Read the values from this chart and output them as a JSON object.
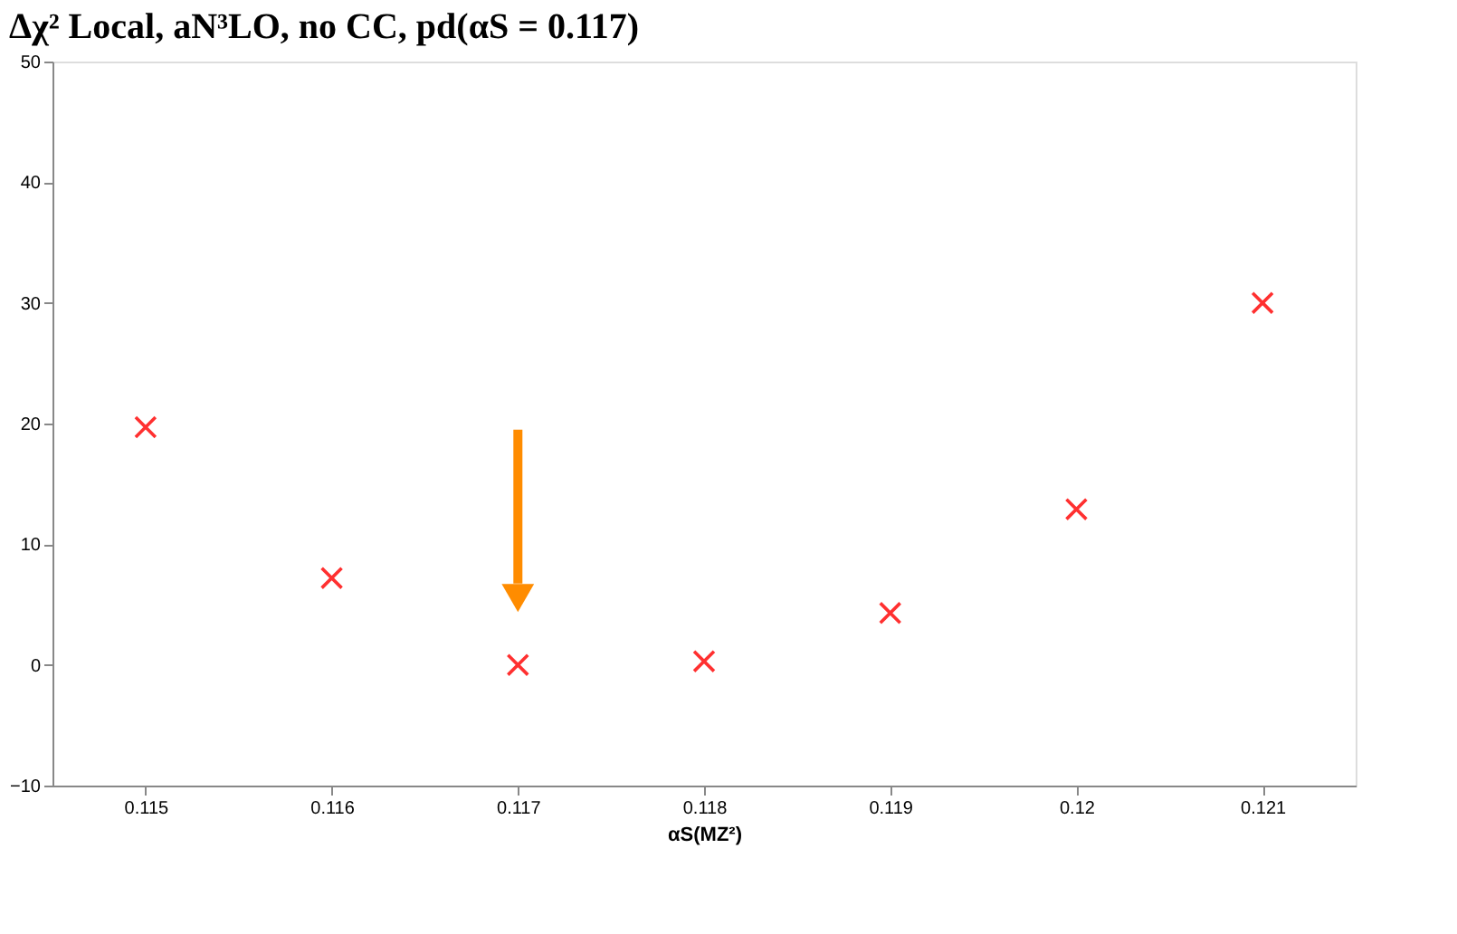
{
  "chart_data": {
    "type": "scatter",
    "title": "Δχ² Local, aN³LO, no CC, pd(αS = 0.117)",
    "xlabel": "αS(MZ²)",
    "x": [
      0.115,
      0.116,
      0.117,
      0.118,
      0.119,
      0.12,
      0.121
    ],
    "series": [
      {
        "color": "#ff3030",
        "values": [
          19.7,
          7.2,
          0,
          0.3,
          4.3,
          12.9,
          30
        ]
      }
    ],
    "xlim": [
      0.1145,
      0.1215
    ],
    "xticks": [
      0.115,
      0.116,
      0.117,
      0.118,
      0.119,
      0.12,
      0.121
    ],
    "ylim": [
      -10,
      50
    ],
    "yticks": [
      -10,
      0,
      10,
      20,
      30,
      40,
      50
    ],
    "marker": "cross",
    "grid": false
  }
}
